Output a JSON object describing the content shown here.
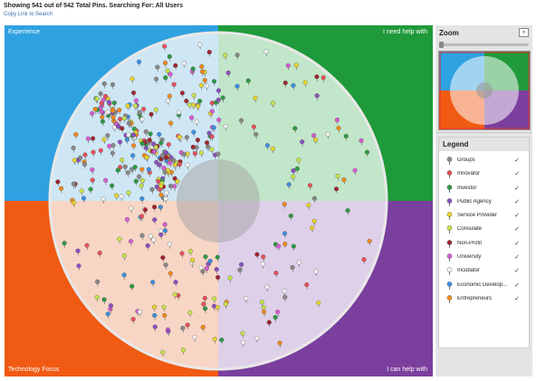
{
  "status_text": "Showing 541 out of 542 Total Pins.  Searching For: All Users",
  "copy_link": "Copy Link to Search",
  "quadrants": {
    "top_left": {
      "label": "Experience",
      "color": "#2ea1e0",
      "light": "#cfe7f5"
    },
    "top_right": {
      "label": "I need help with",
      "color": "#1f9a3a",
      "light": "#c2e6c9"
    },
    "bottom_left": {
      "label": "Technology Focus",
      "color": "#f05a12",
      "light": "#f8d6c5"
    },
    "bottom_right": {
      "label": "I can help with",
      "color": "#7b3f9e",
      "light": "#dfd0ea"
    }
  },
  "zoom": {
    "title": "Zoom",
    "button_label": "»"
  },
  "legend": {
    "title": "Legend",
    "check": "✓",
    "items": [
      {
        "label": "Groups",
        "color": "#888888"
      },
      {
        "label": "Innovator",
        "color": "#e8505b"
      },
      {
        "label": "Investor",
        "color": "#2e9a44"
      },
      {
        "label": "Public Agency",
        "color": "#8a4fbf"
      },
      {
        "label": "Service Provider",
        "color": "#e8d430"
      },
      {
        "label": "Consulate",
        "color": "#c6e34a"
      },
      {
        "label": "Non-Profit",
        "color": "#a0262f"
      },
      {
        "label": "University",
        "color": "#d95bd2"
      },
      {
        "label": "Incubator",
        "color": "#f2f2f2"
      },
      {
        "label": "Economic Develop...",
        "color": "#3c8fe0"
      },
      {
        "label": "Entrepreneurs",
        "color": "#f08a1c"
      }
    ]
  }
}
